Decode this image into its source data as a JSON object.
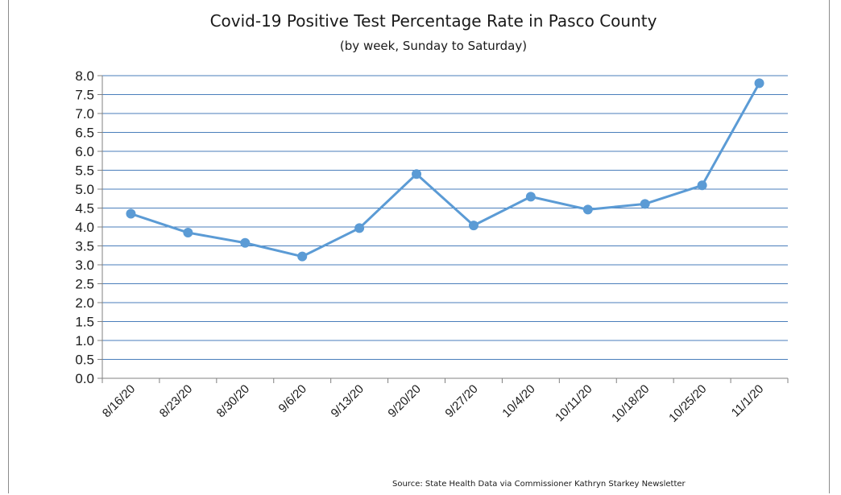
{
  "chart_data": {
    "type": "line",
    "title": "Covid-19 Positive Test Percentage Rate in Pasco County",
    "subtitle": "(by week, Sunday to Saturday)",
    "source": "Source: State Health Data via Commissioner Kathryn Starkey Newsletter",
    "categories": [
      "8/16/20",
      "8/23/20",
      "8/30/20",
      "9/6/20",
      "9/13/20",
      "9/20/20",
      "9/27/20",
      "10/4/20",
      "10/11/20",
      "10/18/20",
      "10/25/20",
      "11/1/20"
    ],
    "values": [
      4.35,
      3.85,
      3.58,
      3.22,
      3.97,
      5.4,
      4.04,
      4.8,
      4.46,
      4.61,
      5.1,
      7.8
    ],
    "yticks": [
      "0.0",
      "0.5",
      "1.0",
      "1.5",
      "2.0",
      "2.5",
      "3.0",
      "3.5",
      "4.0",
      "4.5",
      "5.0",
      "5.5",
      "6.0",
      "6.5",
      "7.0",
      "7.5",
      "8.0"
    ],
    "ylim": [
      0,
      8
    ],
    "grid": true,
    "line_color": "#5b9bd5",
    "grid_color": "#4a7ebb"
  }
}
